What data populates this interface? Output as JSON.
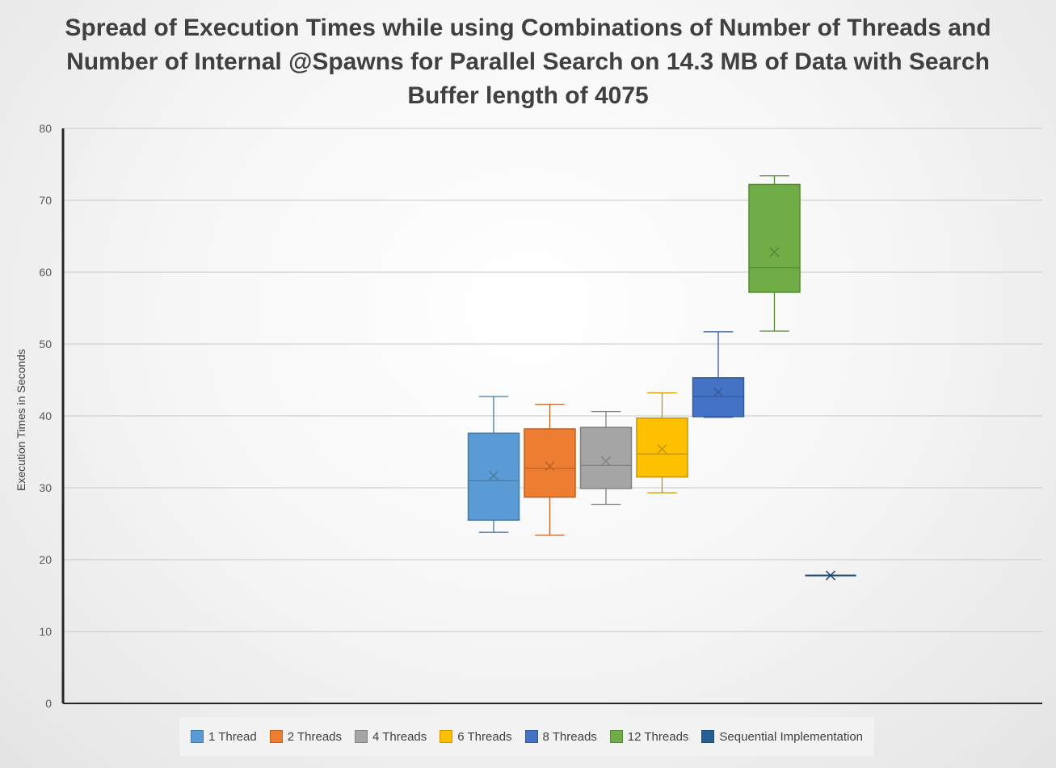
{
  "chart_data": {
    "type": "boxplot",
    "title": "Spread of Execution Times while using Combinations of Number of Threads and Number of Internal @Spawns for Parallel Search on 14.3 MB of Data with Search Buffer length of 4075",
    "xlabel": "",
    "ylabel": "Execution Times in Seconds",
    "ylim": [
      0,
      80
    ],
    "yticks": [
      "0",
      "10",
      "20",
      "30",
      "40",
      "50",
      "60",
      "70",
      "80"
    ],
    "grid": true,
    "legend_position": "bottom",
    "series": [
      {
        "name": "1 Thread",
        "color": "#5b9bd5",
        "min": 23.8,
        "q1": 25.5,
        "median": 31.0,
        "q3": 37.6,
        "max": 42.7,
        "mean": 31.7
      },
      {
        "name": "2 Threads",
        "color": "#ed7d31",
        "min": 23.4,
        "q1": 28.7,
        "median": 32.7,
        "q3": 38.2,
        "max": 41.6,
        "mean": 33.0
      },
      {
        "name": "4 Threads",
        "color": "#a5a5a5",
        "min": 27.7,
        "q1": 29.9,
        "median": 33.1,
        "q3": 38.4,
        "max": 40.6,
        "mean": 33.7
      },
      {
        "name": "6 Threads",
        "color": "#ffc000",
        "min": 29.3,
        "q1": 31.5,
        "median": 34.7,
        "q3": 39.7,
        "max": 43.2,
        "mean": 35.4
      },
      {
        "name": "8 Threads",
        "color": "#4472c4",
        "min": 39.8,
        "q1": 39.9,
        "median": 42.7,
        "q3": 45.3,
        "max": 51.7,
        "mean": 43.3
      },
      {
        "name": "12 Threads",
        "color": "#70ad47",
        "min": 51.8,
        "q1": 57.2,
        "median": 60.6,
        "q3": 72.2,
        "max": 73.4,
        "mean": 62.8
      },
      {
        "name": "Sequential Implementation",
        "color": "#255e91",
        "min": 17.8,
        "q1": 17.8,
        "median": 17.8,
        "q3": 17.8,
        "max": 17.8,
        "mean": 17.8
      }
    ]
  }
}
